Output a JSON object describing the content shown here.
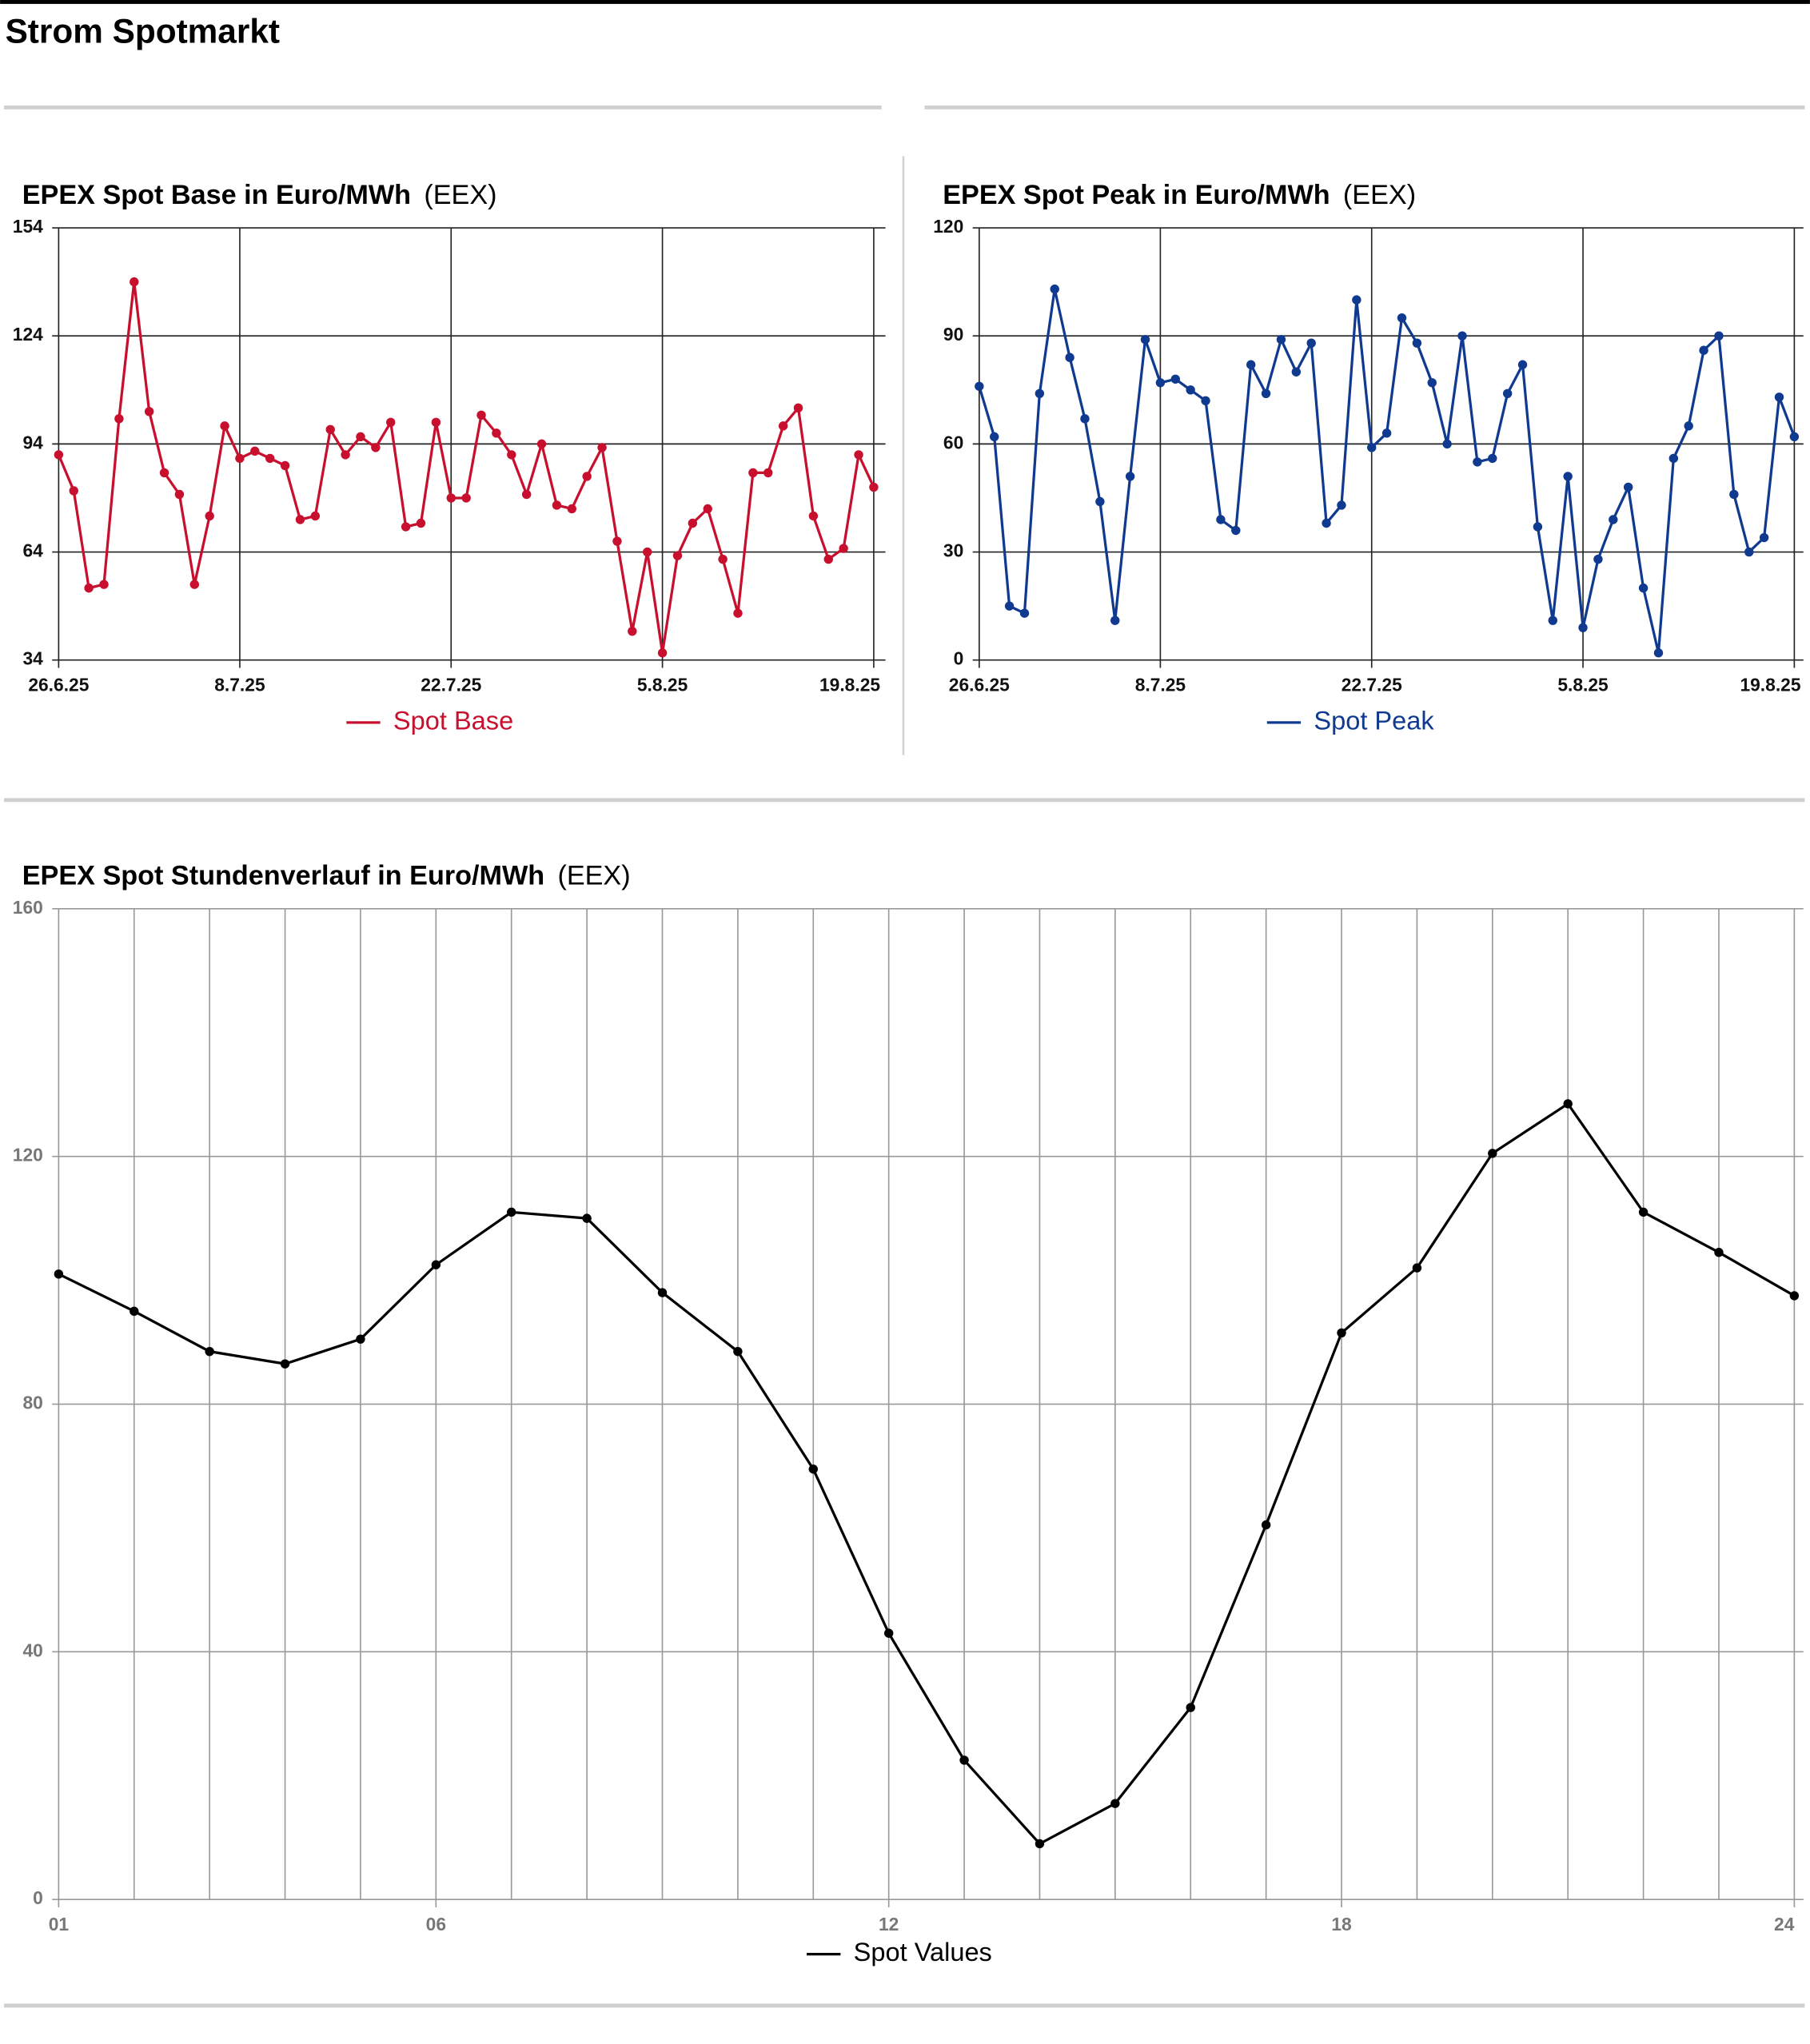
{
  "page_title": "Strom Spotmarkt",
  "chart_data": [
    {
      "type": "line",
      "title": "EPEX Spot Base in Euro/MWh",
      "source": "(EEX)",
      "categories": [
        "26.6.25",
        null,
        null,
        null,
        null,
        null,
        null,
        null,
        null,
        null,
        null,
        null,
        "8.7.25",
        null,
        null,
        null,
        null,
        null,
        null,
        null,
        null,
        null,
        null,
        null,
        null,
        null,
        "22.7.25",
        null,
        null,
        null,
        null,
        null,
        null,
        null,
        null,
        null,
        null,
        null,
        null,
        null,
        "5.8.25",
        null,
        null,
        null,
        null,
        null,
        null,
        null,
        null,
        null,
        null,
        null,
        null,
        null,
        "19.8.25"
      ],
      "series": [
        {
          "name": "Spot Base",
          "color": "#c8102e",
          "values": [
            91,
            81,
            54,
            55,
            101,
            139,
            103,
            86,
            80,
            55,
            74,
            99,
            90,
            92,
            90,
            88,
            73,
            74,
            98,
            91,
            96,
            93,
            100,
            71,
            72,
            100,
            79,
            79,
            102,
            97,
            91,
            80,
            94,
            77,
            76,
            85,
            93,
            67,
            42,
            64,
            36,
            63,
            72,
            76,
            62,
            47,
            86,
            86,
            99,
            104,
            74,
            62,
            65,
            91,
            82
          ]
        }
      ],
      "ylim": [
        34,
        154
      ],
      "yticks": [
        34,
        64,
        94,
        124,
        154
      ],
      "grid": true
    },
    {
      "type": "line",
      "title": "EPEX Spot Peak in Euro/MWh",
      "source": "(EEX)",
      "categories": [
        "26.6.25",
        null,
        null,
        null,
        null,
        null,
        null,
        null,
        null,
        null,
        null,
        null,
        "8.7.25",
        null,
        null,
        null,
        null,
        null,
        null,
        null,
        null,
        null,
        null,
        null,
        null,
        null,
        "22.7.25",
        null,
        null,
        null,
        null,
        null,
        null,
        null,
        null,
        null,
        null,
        null,
        null,
        null,
        "5.8.25",
        null,
        null,
        null,
        null,
        null,
        null,
        null,
        null,
        null,
        null,
        null,
        null,
        null,
        "19.8.25"
      ],
      "series": [
        {
          "name": "Spot Peak",
          "color": "#0f3a8f",
          "values": [
            76,
            62,
            15,
            13,
            74,
            103,
            84,
            67,
            44,
            11,
            51,
            89,
            77,
            78,
            75,
            72,
            39,
            36,
            82,
            74,
            89,
            80,
            88,
            38,
            43,
            100,
            59,
            63,
            95,
            88,
            77,
            60,
            90,
            55,
            56,
            74,
            82,
            37,
            11,
            51,
            9,
            28,
            39,
            48,
            20,
            2,
            56,
            65,
            86,
            90,
            46,
            30,
            34,
            73,
            62
          ]
        }
      ],
      "ylim": [
        0,
        120
      ],
      "yticks": [
        0,
        30,
        60,
        90,
        120
      ],
      "grid": true
    },
    {
      "type": "line",
      "title": "EPEX Spot Stundenverlauf in Euro/MWh",
      "source": "(EEX)",
      "categories": [
        "01",
        null,
        null,
        null,
        null,
        "06",
        null,
        null,
        null,
        null,
        null,
        "12",
        null,
        null,
        null,
        null,
        null,
        "18",
        null,
        null,
        null,
        null,
        null,
        "24"
      ],
      "series": [
        {
          "name": "Spot Values",
          "color": "#000000",
          "values": [
            101,
            95,
            88.5,
            86.5,
            90.5,
            102.5,
            111,
            110,
            98,
            88.5,
            69.5,
            43,
            22.5,
            9,
            15.5,
            31,
            60.5,
            91.5,
            102,
            120.5,
            128.5,
            111,
            104.5,
            97.5
          ]
        }
      ],
      "ylim": [
        0,
        160
      ],
      "yticks": [
        0,
        40,
        80,
        120,
        160
      ],
      "grid": true
    }
  ]
}
